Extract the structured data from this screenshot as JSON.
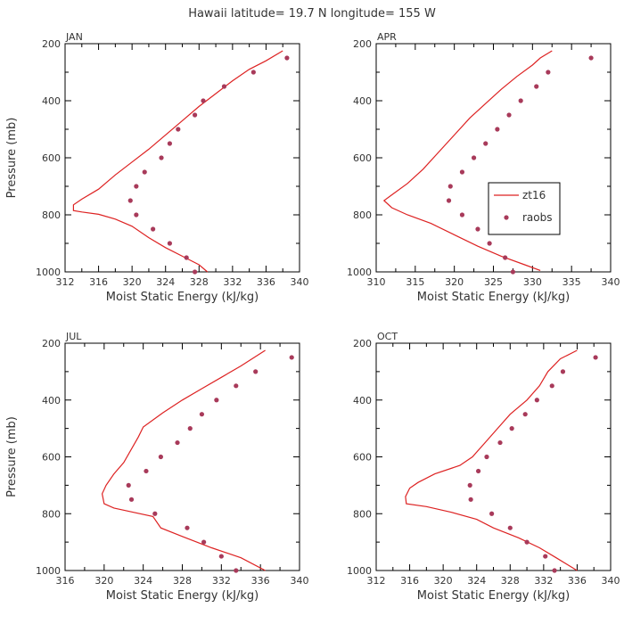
{
  "figure_title": "Hawaii  latitude= 19.7 N longitude= 155 W",
  "chart_data": [
    {
      "type": "line",
      "panel": "JAN",
      "xlabel": "Moist Static Energy (kJ/kg)",
      "ylabel": "Pressure (mb)",
      "xlim": [
        312,
        340
      ],
      "xticks": [
        312,
        316,
        320,
        324,
        328,
        332,
        336,
        340
      ],
      "ylim": [
        200,
        1000
      ],
      "yticks": [
        200,
        400,
        600,
        800,
        1000
      ],
      "y_inverted": true,
      "series": [
        {
          "name": "zt16",
          "style": "line",
          "color": "#dd2222",
          "points": [
            [
              338,
              225
            ],
            [
              336,
              260
            ],
            [
              334,
              290
            ],
            [
              332,
              330
            ],
            [
              330,
              375
            ],
            [
              328,
              420
            ],
            [
              326,
              470
            ],
            [
              324,
              520
            ],
            [
              322,
              570
            ],
            [
              320,
              615
            ],
            [
              318,
              660
            ],
            [
              316,
              710
            ],
            [
              314,
              745
            ],
            [
              313,
              765
            ],
            [
              313,
              785
            ],
            [
              314,
              790
            ],
            [
              316,
              798
            ],
            [
              318,
              815
            ],
            [
              320,
              840
            ],
            [
              322,
              880
            ],
            [
              324,
              915
            ],
            [
              326,
              945
            ],
            [
              328,
              975
            ],
            [
              329,
              1000
            ]
          ]
        },
        {
          "name": "raobs",
          "style": "markers",
          "color": "#a83a5a",
          "points": [
            [
              338.5,
              250
            ],
            [
              334.5,
              300
            ],
            [
              331,
              350
            ],
            [
              328.5,
              400
            ],
            [
              327.5,
              450
            ],
            [
              325.5,
              500
            ],
            [
              324.5,
              550
            ],
            [
              323.5,
              600
            ],
            [
              321.5,
              650
            ],
            [
              320.5,
              700
            ],
            [
              319.8,
              750
            ],
            [
              320.5,
              800
            ],
            [
              322.5,
              850
            ],
            [
              324.5,
              900
            ],
            [
              326.5,
              950
            ],
            [
              327.5,
              1000
            ]
          ]
        }
      ]
    },
    {
      "type": "line",
      "panel": "APR",
      "xlabel": "Moist Static Energy (kJ/kg)",
      "ylabel": "",
      "xlim": [
        310,
        340
      ],
      "xticks": [
        310,
        315,
        320,
        325,
        330,
        335,
        340
      ],
      "ylim": [
        200,
        1000
      ],
      "yticks": [
        200,
        400,
        600,
        800,
        1000
      ],
      "y_inverted": true,
      "legend": {
        "placement": "right-middle",
        "entries": [
          "zt16",
          "raobs"
        ]
      },
      "series": [
        {
          "name": "zt16",
          "style": "line",
          "color": "#dd2222",
          "points": [
            [
              332.5,
              225
            ],
            [
              331,
              250
            ],
            [
              330,
              275
            ],
            [
              328,
              315
            ],
            [
              326,
              360
            ],
            [
              324,
              410
            ],
            [
              322,
              460
            ],
            [
              320,
              520
            ],
            [
              318,
              580
            ],
            [
              316,
              640
            ],
            [
              314,
              690
            ],
            [
              312,
              730
            ],
            [
              311,
              750
            ],
            [
              312,
              775
            ],
            [
              314,
              800
            ],
            [
              317,
              830
            ],
            [
              320,
              870
            ],
            [
              323,
              910
            ],
            [
              326,
              945
            ],
            [
              329,
              975
            ],
            [
              331,
              995
            ]
          ]
        },
        {
          "name": "raobs",
          "style": "markers",
          "color": "#a83a5a",
          "points": [
            [
              337.5,
              250
            ],
            [
              332,
              300
            ],
            [
              330.5,
              350
            ],
            [
              328.5,
              400
            ],
            [
              327,
              450
            ],
            [
              325.5,
              500
            ],
            [
              324,
              550
            ],
            [
              322.5,
              600
            ],
            [
              321,
              650
            ],
            [
              319.5,
              700
            ],
            [
              319.3,
              750
            ],
            [
              321,
              800
            ],
            [
              323,
              850
            ],
            [
              324.5,
              900
            ],
            [
              326.5,
              950
            ],
            [
              327.5,
              1000
            ]
          ]
        }
      ]
    },
    {
      "type": "line",
      "panel": "JUL",
      "xlabel": "Moist Static Energy (kJ/kg)",
      "ylabel": "Pressure (mb)",
      "xlim": [
        316,
        340
      ],
      "xticks": [
        316,
        320,
        324,
        328,
        332,
        336,
        340
      ],
      "ylim": [
        200,
        1000
      ],
      "yticks": [
        200,
        400,
        600,
        800,
        1000
      ],
      "y_inverted": true,
      "series": [
        {
          "name": "zt16",
          "style": "line",
          "color": "#dd2222",
          "points": [
            [
              336.5,
              225
            ],
            [
              334,
              280
            ],
            [
              332,
              320
            ],
            [
              330,
              360
            ],
            [
              328,
              400
            ],
            [
              326,
              445
            ],
            [
              324,
              495
            ],
            [
              323.5,
              530
            ],
            [
              323,
              560
            ],
            [
              322,
              620
            ],
            [
              321,
              660
            ],
            [
              320.2,
              700
            ],
            [
              319.8,
              730
            ],
            [
              320,
              765
            ],
            [
              321,
              780
            ],
            [
              323,
              795
            ],
            [
              325,
              810
            ],
            [
              325.8,
              850
            ],
            [
              328,
              880
            ],
            [
              331,
              920
            ],
            [
              334,
              955
            ],
            [
              336.5,
              1000
            ]
          ]
        },
        {
          "name": "raobs",
          "style": "markers",
          "color": "#a83a5a",
          "points": [
            [
              339.2,
              250
            ],
            [
              335.5,
              300
            ],
            [
              333.5,
              350
            ],
            [
              331.5,
              400
            ],
            [
              330,
              450
            ],
            [
              328.8,
              500
            ],
            [
              327.5,
              550
            ],
            [
              325.8,
              600
            ],
            [
              324.3,
              650
            ],
            [
              322.5,
              700
            ],
            [
              322.8,
              750
            ],
            [
              325.2,
              800
            ],
            [
              328.5,
              850
            ],
            [
              330.2,
              900
            ],
            [
              332,
              950
            ],
            [
              333.5,
              1000
            ]
          ]
        }
      ]
    },
    {
      "type": "line",
      "panel": "OCT",
      "xlabel": "Moist Static Energy (kJ/kg)",
      "ylabel": "",
      "xlim": [
        312,
        340
      ],
      "xticks": [
        312,
        316,
        320,
        324,
        328,
        332,
        336,
        340
      ],
      "ylim": [
        200,
        1000
      ],
      "yticks": [
        200,
        400,
        600,
        800,
        1000
      ],
      "y_inverted": true,
      "series": [
        {
          "name": "zt16",
          "style": "line",
          "color": "#dd2222",
          "points": [
            [
              336,
              225
            ],
            [
              334,
              255
            ],
            [
              332.5,
              300
            ],
            [
              331.5,
              350
            ],
            [
              330,
              400
            ],
            [
              328,
              450
            ],
            [
              326.5,
              500
            ],
            [
              325,
              550
            ],
            [
              323.5,
              600
            ],
            [
              322,
              630
            ],
            [
              319,
              660
            ],
            [
              317,
              690
            ],
            [
              316,
              710
            ],
            [
              315.5,
              740
            ],
            [
              315.6,
              765
            ],
            [
              318,
              775
            ],
            [
              321,
              795
            ],
            [
              324,
              820
            ],
            [
              326,
              850
            ],
            [
              329,
              885
            ],
            [
              331.5,
              920
            ],
            [
              333.5,
              955
            ],
            [
              336,
              1000
            ]
          ]
        },
        {
          "name": "raobs",
          "style": "markers",
          "color": "#a83a5a",
          "points": [
            [
              338.2,
              250
            ],
            [
              334.3,
              300
            ],
            [
              333,
              350
            ],
            [
              331.2,
              400
            ],
            [
              329.8,
              450
            ],
            [
              328.2,
              500
            ],
            [
              326.8,
              550
            ],
            [
              325.2,
              600
            ],
            [
              324.2,
              650
            ],
            [
              323.2,
              700
            ],
            [
              323.3,
              750
            ],
            [
              325.8,
              800
            ],
            [
              328,
              850
            ],
            [
              330,
              900
            ],
            [
              332.2,
              950
            ],
            [
              333.3,
              1000
            ]
          ]
        }
      ]
    }
  ]
}
